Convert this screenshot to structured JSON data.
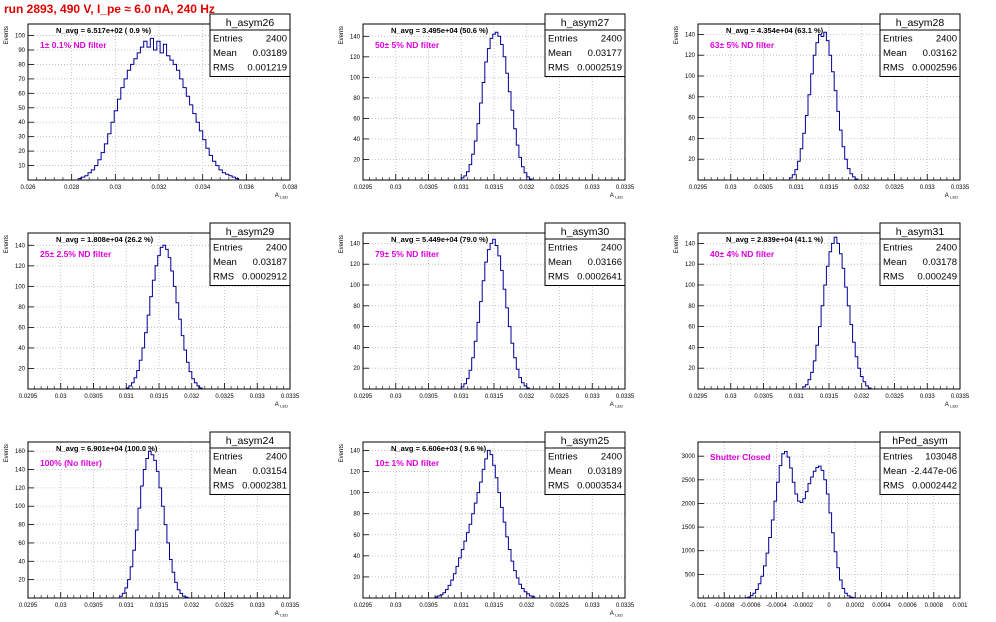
{
  "header": {
    "title": "run 2893,   490 V, I_pe ≈ 6.0 nA, 240 Hz"
  },
  "chart_data": [
    {
      "type": "histogram",
      "name": "h_asym26",
      "title": "N_avg = 6.517e+02 ( 0.9 %)",
      "annotation": "1± 0.1% ND filter",
      "stats": {
        "Entries": "2400",
        "Mean": "0.03189",
        "RMS": "0.001219"
      },
      "ylabel": "Events",
      "xlabel": "A_LED",
      "xlim": [
        0.026,
        0.038
      ],
      "ylim": [
        0,
        108
      ],
      "xticks": [
        0.026,
        0.028,
        0.03,
        0.032,
        0.034,
        0.036,
        0.038
      ],
      "xticklabels": [
        "0.026",
        "0.028",
        "0.03",
        "0.032",
        "0.034",
        "0.036",
        "0.038"
      ],
      "yticks": [
        0,
        10,
        20,
        30,
        40,
        50,
        60,
        70,
        80,
        90,
        100
      ],
      "yticklabels": [
        "",
        "10",
        "20",
        "30",
        "40",
        "50",
        "60",
        "70",
        "80",
        "90",
        "100"
      ],
      "bins": {
        "start": 0.0283,
        "step": 0.00015,
        "values": [
          1,
          2,
          3,
          5,
          7,
          10,
          14,
          19,
          25,
          32,
          40,
          48,
          56,
          64,
          70,
          76,
          80,
          84,
          88,
          92,
          96,
          92,
          98,
          90,
          96,
          88,
          94,
          86,
          83,
          80,
          76,
          70,
          64,
          58,
          52,
          46,
          40,
          34,
          28,
          22,
          17,
          13,
          10,
          7,
          5,
          4,
          3,
          2,
          1
        ]
      }
    },
    {
      "type": "histogram",
      "name": "h_asym27",
      "title": "N_avg = 3.495e+04 (50.6 %)",
      "annotation": "50± 5% ND filter",
      "stats": {
        "Entries": "2400",
        "Mean": "0.03177",
        "RMS": "0.0002519"
      },
      "ylabel": "Events",
      "xlabel": "A_LED",
      "xlim": [
        0.0295,
        0.0335
      ],
      "ylim": [
        0,
        152
      ],
      "xticks": [
        0.0295,
        0.03,
        0.0305,
        0.031,
        0.0315,
        0.032,
        0.0325,
        0.033,
        0.0335
      ],
      "xticklabels": [
        "0.0295",
        "0.03",
        "0.0305",
        "0.031",
        "0.0315",
        "0.032",
        "0.0325",
        "0.033",
        "0.0335"
      ],
      "yticks": [
        0,
        20,
        40,
        60,
        80,
        100,
        120,
        140
      ],
      "yticklabels": [
        "",
        "20",
        "40",
        "60",
        "80",
        "100",
        "120",
        "140"
      ],
      "bins": {
        "start": 0.031,
        "step": 4e-05,
        "values": [
          2,
          4,
          8,
          15,
          25,
          38,
          55,
          75,
          95,
          115,
          128,
          138,
          142,
          144,
          140,
          132,
          120,
          104,
          86,
          68,
          50,
          34,
          22,
          13,
          7,
          3,
          1
        ]
      }
    },
    {
      "type": "histogram",
      "name": "h_asym28",
      "title": "N_avg = 4.354e+04 (63.1 %)",
      "annotation": "63± 5% ND filter",
      "stats": {
        "Entries": "2400",
        "Mean": "0.03162",
        "RMS": "0.0002596"
      },
      "ylabel": "Events",
      "xlabel": "A_LED",
      "xlim": [
        0.0295,
        0.0335
      ],
      "ylim": [
        0,
        150
      ],
      "xticks": [
        0.0295,
        0.03,
        0.0305,
        0.031,
        0.0315,
        0.032,
        0.0325,
        0.033,
        0.0335
      ],
      "xticklabels": [
        "0.0295",
        "0.03",
        "0.0305",
        "0.031",
        "0.0315",
        "0.032",
        "0.0325",
        "0.033",
        "0.0335"
      ],
      "yticks": [
        0,
        20,
        40,
        60,
        80,
        100,
        120,
        140
      ],
      "yticklabels": [
        "",
        "20",
        "40",
        "60",
        "80",
        "100",
        "120",
        "140"
      ],
      "bins": {
        "start": 0.0309,
        "step": 4e-05,
        "values": [
          2,
          5,
          10,
          18,
          30,
          45,
          62,
          82,
          102,
          120,
          132,
          140,
          138,
          142,
          134,
          120,
          104,
          86,
          66,
          48,
          32,
          20,
          11,
          6,
          3,
          1
        ]
      }
    },
    {
      "type": "histogram",
      "name": "h_asym29",
      "title": "N_avg = 1.808e+04 (26.2 %)",
      "annotation": "25± 2.5% ND filter",
      "stats": {
        "Entries": "2400",
        "Mean": "0.03187",
        "RMS": "0.0002912"
      },
      "ylabel": "Events",
      "xlabel": "A_LED",
      "xlim": [
        0.0295,
        0.0335
      ],
      "ylim": [
        0,
        152
      ],
      "xticks": [
        0.0295,
        0.03,
        0.0305,
        0.031,
        0.0315,
        0.032,
        0.0325,
        0.033,
        0.0335
      ],
      "xticklabels": [
        "0.0295",
        "0.03",
        "0.0305",
        "0.031",
        "0.0315",
        "0.032",
        "0.0325",
        "0.033",
        "0.0335"
      ],
      "yticks": [
        0,
        20,
        40,
        60,
        80,
        100,
        120,
        140
      ],
      "yticklabels": [
        "",
        "20",
        "40",
        "60",
        "80",
        "100",
        "120",
        "140"
      ],
      "bins": {
        "start": 0.031,
        "step": 4e-05,
        "values": [
          1,
          3,
          6,
          11,
          18,
          28,
          40,
          55,
          72,
          90,
          106,
          120,
          130,
          138,
          140,
          136,
          128,
          115,
          100,
          84,
          68,
          52,
          38,
          26,
          17,
          10,
          6,
          3,
          1
        ]
      }
    },
    {
      "type": "histogram",
      "name": "h_asym30",
      "title": "N_avg = 5.449e+04 (79.0 %)",
      "annotation": "79± 5% ND filter",
      "stats": {
        "Entries": "2400",
        "Mean": "0.03166",
        "RMS": "0.0002641"
      },
      "ylabel": "Events",
      "xlabel": "A_LED",
      "xlim": [
        0.0295,
        0.0335
      ],
      "ylim": [
        0,
        150
      ],
      "xticks": [
        0.0295,
        0.03,
        0.0305,
        0.031,
        0.0315,
        0.032,
        0.0325,
        0.033,
        0.0335
      ],
      "xticklabels": [
        "0.0295",
        "0.03",
        "0.0305",
        "0.031",
        "0.0315",
        "0.032",
        "0.0325",
        "0.033",
        "0.0335"
      ],
      "yticks": [
        0,
        20,
        40,
        60,
        80,
        100,
        120,
        140
      ],
      "yticklabels": [
        "",
        "20",
        "40",
        "60",
        "80",
        "100",
        "120",
        "140"
      ],
      "bins": {
        "start": 0.031,
        "step": 4e-05,
        "values": [
          2,
          5,
          10,
          18,
          30,
          46,
          64,
          84,
          104,
          122,
          134,
          140,
          144,
          138,
          128,
          114,
          96,
          78,
          60,
          44,
          30,
          19,
          11,
          6,
          3,
          1
        ]
      }
    },
    {
      "type": "histogram",
      "name": "h_asym31",
      "title": "N_avg = 2.839e+04 (41.1 %)",
      "annotation": "40± 4% ND filter",
      "stats": {
        "Entries": "2400",
        "Mean": "0.03178",
        "RMS": "0.000249"
      },
      "ylabel": "Events",
      "xlabel": "A_LED",
      "xlim": [
        0.0295,
        0.0335
      ],
      "ylim": [
        0,
        150
      ],
      "xticks": [
        0.0295,
        0.03,
        0.0305,
        0.031,
        0.0315,
        0.032,
        0.0325,
        0.033,
        0.0335
      ],
      "xticklabels": [
        "0.0295",
        "0.03",
        "0.0305",
        "0.031",
        "0.0315",
        "0.032",
        "0.0325",
        "0.033",
        "0.0335"
      ],
      "yticks": [
        0,
        20,
        40,
        60,
        80,
        100,
        120,
        140
      ],
      "yticklabels": [
        "",
        "20",
        "40",
        "60",
        "80",
        "100",
        "120",
        "140"
      ],
      "bins": {
        "start": 0.0311,
        "step": 4e-05,
        "values": [
          2,
          4,
          9,
          16,
          27,
          42,
          60,
          80,
          100,
          118,
          132,
          140,
          146,
          140,
          130,
          116,
          98,
          80,
          62,
          45,
          31,
          20,
          12,
          7,
          3,
          1
        ]
      }
    },
    {
      "type": "histogram",
      "name": "h_asym24",
      "title": "N_avg = 6.901e+04 (100.0 %)",
      "annotation": "100% (No filter)",
      "stats": {
        "Entries": "2400",
        "Mean": "0.03154",
        "RMS": "0.0002381"
      },
      "ylabel": "Events",
      "xlabel": "A_LED",
      "xlim": [
        0.0295,
        0.0335
      ],
      "ylim": [
        0,
        170
      ],
      "xticks": [
        0.0295,
        0.03,
        0.0305,
        0.031,
        0.0315,
        0.032,
        0.0325,
        0.033,
        0.0335
      ],
      "xticklabels": [
        "0.0295",
        "0.03",
        "0.0305",
        "0.031",
        "0.0315",
        "0.032",
        "0.0325",
        "0.033",
        "0.0335"
      ],
      "yticks": [
        0,
        20,
        40,
        60,
        80,
        100,
        120,
        140,
        160
      ],
      "yticklabels": [
        "",
        "20",
        "40",
        "60",
        "80",
        "100",
        "120",
        "140",
        "160"
      ],
      "bins": {
        "start": 0.0309,
        "step": 4e-05,
        "values": [
          2,
          5,
          11,
          20,
          34,
          52,
          74,
          98,
          122,
          140,
          152,
          160,
          156,
          150,
          138,
          120,
          100,
          80,
          60,
          42,
          28,
          17,
          9,
          5,
          2,
          1
        ]
      }
    },
    {
      "type": "histogram",
      "name": "h_asym25",
      "title": "N_avg = 6.606e+03 ( 9.6 %)",
      "annotation": "10± 1% ND filter",
      "stats": {
        "Entries": "2400",
        "Mean": "0.03189",
        "RMS": "0.0003534"
      },
      "ylabel": "Events",
      "xlabel": "A_LED",
      "xlim": [
        0.0295,
        0.0335
      ],
      "ylim": [
        0,
        148
      ],
      "xticks": [
        0.0295,
        0.03,
        0.0305,
        0.031,
        0.0315,
        0.032,
        0.0325,
        0.033,
        0.0335
      ],
      "xticklabels": [
        "0.0295",
        "0.03",
        "0.0305",
        "0.031",
        "0.0315",
        "0.032",
        "0.0325",
        "0.033",
        "0.0335"
      ],
      "yticks": [
        0,
        20,
        40,
        60,
        80,
        100,
        120,
        140
      ],
      "yticklabels": [
        "",
        "20",
        "40",
        "60",
        "80",
        "100",
        "120",
        "140"
      ],
      "bins": {
        "start": 0.0306,
        "step": 4e-05,
        "values": [
          1,
          2,
          3,
          5,
          8,
          12,
          17,
          23,
          30,
          38,
          46,
          54,
          62,
          70,
          80,
          90,
          100,
          110,
          122,
          132,
          140,
          136,
          126,
          114,
          100,
          86,
          72,
          58,
          46,
          35,
          26,
          19,
          13,
          9,
          6,
          4,
          2,
          1
        ]
      }
    },
    {
      "type": "histogram",
      "name": "hPed_asym",
      "title": "",
      "annotation": "Shutter Closed",
      "stats": {
        "Entries": "103048",
        "Mean": "-2.447e-06",
        "RMS": "0.0002442"
      },
      "ylabel": "",
      "xlabel": "",
      "xlim": [
        -0.001,
        0.001
      ],
      "ylim": [
        0,
        3300
      ],
      "xticks": [
        -0.001,
        -0.0008,
        -0.0006,
        -0.0004,
        -0.0002,
        0,
        0.0002,
        0.0004,
        0.0006,
        0.0008,
        0.001
      ],
      "xticklabels": [
        "-0.001",
        "-0.0008",
        "-0.0006",
        "-0.0004",
        "-0.0002",
        "0",
        "0.0002",
        "0.0004",
        "0.0006",
        "0.0008",
        "0.001"
      ],
      "yticks": [
        0,
        500,
        1000,
        1500,
        2000,
        2500,
        3000
      ],
      "yticklabels": [
        "",
        "500",
        "1000",
        "1500",
        "2000",
        "2500",
        "3000"
      ],
      "bins": {
        "start": -0.00064,
        "step": 2e-05,
        "values": [
          5,
          20,
          50,
          100,
          180,
          300,
          460,
          680,
          950,
          1280,
          1650,
          2050,
          2450,
          2800,
          3050,
          3100,
          2980,
          2750,
          2450,
          2200,
          2050,
          2020,
          2100,
          2250,
          2420,
          2560,
          2680,
          2760,
          2790,
          2700,
          2500,
          2200,
          1800,
          1380,
          980,
          640,
          380,
          200,
          100,
          45,
          20,
          8
        ]
      }
    }
  ]
}
